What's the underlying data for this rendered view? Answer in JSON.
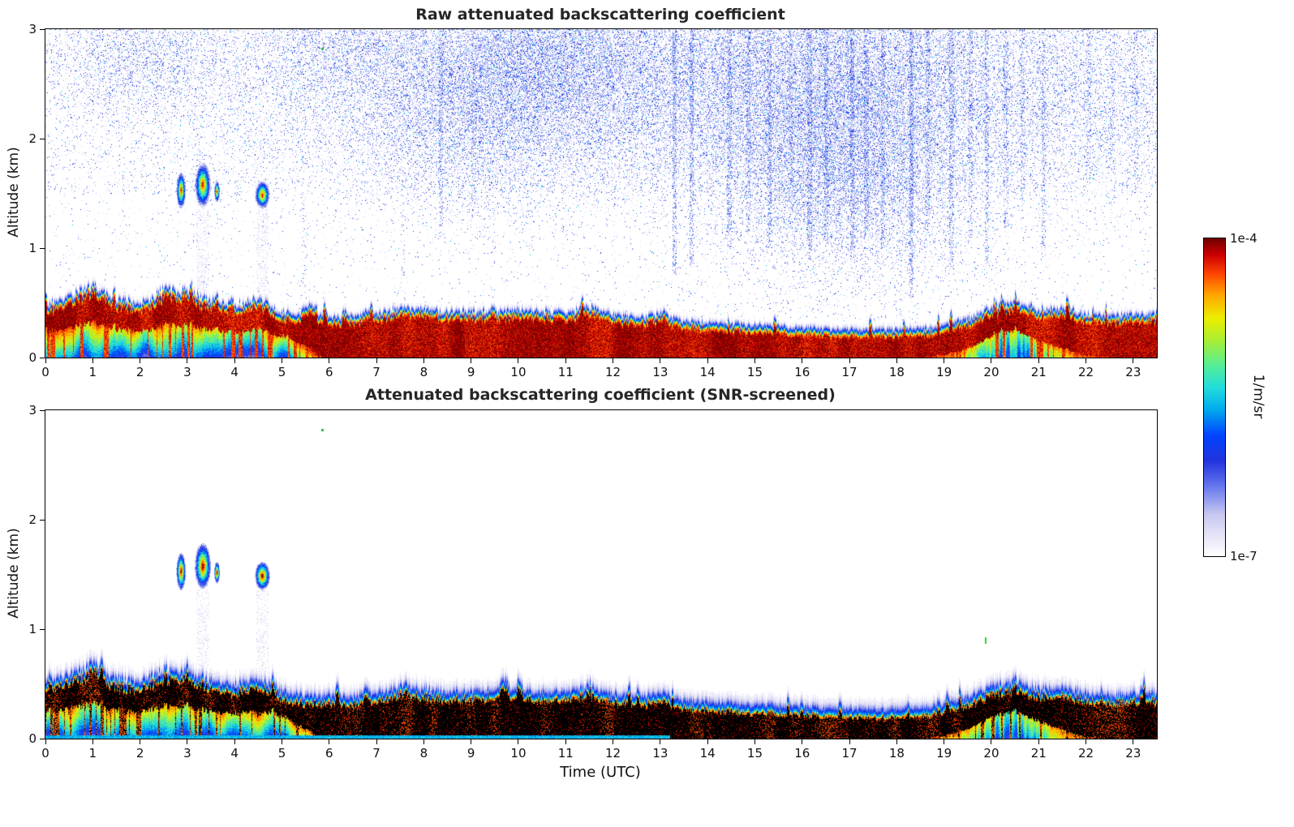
{
  "figure": {
    "background": "#ffffff",
    "text_color": "#111111",
    "frame_color": "#000000"
  },
  "colorbar": {
    "max_label": "1e-4",
    "min_label": "1e-7",
    "unit": "1/m/sr",
    "scale": "log"
  },
  "colormap": {
    "stops": [
      [
        0.0,
        "#ffffff"
      ],
      [
        0.06,
        "#e8e6f8"
      ],
      [
        0.13,
        "#c8c8f0"
      ],
      [
        0.22,
        "#6677ee"
      ],
      [
        0.3,
        "#2233dd"
      ],
      [
        0.38,
        "#0044ff"
      ],
      [
        0.46,
        "#00aaee"
      ],
      [
        0.53,
        "#22dddd"
      ],
      [
        0.6,
        "#55ee99"
      ],
      [
        0.68,
        "#aaee33"
      ],
      [
        0.75,
        "#eeee00"
      ],
      [
        0.82,
        "#ffaa00"
      ],
      [
        0.89,
        "#ff4400"
      ],
      [
        0.95,
        "#cc0000"
      ],
      [
        1.0,
        "#700000"
      ]
    ]
  },
  "chart_data": [
    {
      "type": "heatmap",
      "title": "Raw attenuated backscattering coefficient",
      "xlabel": "",
      "ylabel": "Altitude (km)",
      "xlim": [
        0,
        23.5
      ],
      "ylim": [
        0,
        3
      ],
      "xticks": [
        0,
        1,
        2,
        3,
        4,
        5,
        6,
        7,
        8,
        9,
        10,
        11,
        12,
        13,
        14,
        15,
        16,
        17,
        18,
        19,
        20,
        21,
        22,
        23
      ],
      "yticks": [
        0,
        1,
        2,
        3
      ],
      "value_range": [
        "1e-7",
        "1e-4"
      ],
      "units": "1/m/sr",
      "screened": false,
      "boundary_layer": {
        "t_hours": [
          0,
          0.5,
          1,
          1.5,
          2,
          2.5,
          3,
          3.5,
          4,
          4.5,
          5,
          5.5,
          6,
          6.5,
          7,
          7.5,
          8,
          8.5,
          9,
          9.5,
          10,
          10.5,
          11,
          11.5,
          12,
          12.5,
          13,
          13.5,
          14,
          14.5,
          15,
          15.5,
          16,
          16.5,
          17,
          17.5,
          18,
          18.5,
          19,
          19.5,
          20,
          20.5,
          21,
          21.5,
          22,
          22.5,
          23
        ],
        "top_km": [
          0.45,
          0.52,
          0.62,
          0.5,
          0.45,
          0.58,
          0.55,
          0.48,
          0.44,
          0.5,
          0.38,
          0.34,
          0.34,
          0.33,
          0.36,
          0.42,
          0.4,
          0.38,
          0.38,
          0.37,
          0.4,
          0.38,
          0.38,
          0.42,
          0.36,
          0.33,
          0.36,
          0.3,
          0.28,
          0.27,
          0.26,
          0.25,
          0.24,
          0.23,
          0.22,
          0.22,
          0.22,
          0.23,
          0.26,
          0.32,
          0.42,
          0.47,
          0.4,
          0.42,
          0.36,
          0.34,
          0.36
        ]
      },
      "clouds": [
        {
          "t": 2.86,
          "z": 1.53,
          "rt": 0.1,
          "rz": 0.17,
          "streak": false
        },
        {
          "t": 3.32,
          "z": 1.58,
          "rt": 0.17,
          "rz": 0.21,
          "streak": true
        },
        {
          "t": 3.62,
          "z": 1.52,
          "rt": 0.06,
          "rz": 0.1,
          "streak": false
        },
        {
          "t": 4.58,
          "z": 1.49,
          "rt": 0.16,
          "rz": 0.13,
          "streak": true
        }
      ],
      "specks": [
        {
          "t": 5.85,
          "z": 2.82,
          "w": 3,
          "h": 3,
          "color": "#22bb44"
        }
      ],
      "noise": {
        "base_high": 0.035,
        "base_low": 0.012,
        "blobs": [
          {
            "t": 12.3,
            "z": 2.55,
            "st": 4.8,
            "sz": 0.55,
            "p": 0.28
          },
          {
            "t": 17.0,
            "z": 2.15,
            "st": 1.7,
            "sz": 0.75,
            "p": 0.22
          },
          {
            "t": 9.2,
            "z": 2.3,
            "st": 1.4,
            "sz": 0.55,
            "p": 0.13
          },
          {
            "t": 1.9,
            "z": 2.75,
            "st": 1.1,
            "sz": 0.28,
            "p": 0.16
          },
          {
            "t": 6.4,
            "z": 2.85,
            "st": 0.9,
            "sz": 0.22,
            "p": 0.12
          },
          {
            "t": 22.0,
            "z": 2.5,
            "st": 1.8,
            "sz": 0.6,
            "p": 0.1
          },
          {
            "t": 16.8,
            "z": 1.6,
            "st": 1.5,
            "sz": 0.45,
            "p": 0.12
          },
          {
            "t": 10.6,
            "z": 2.75,
            "st": 1.0,
            "sz": 0.3,
            "p": 0.15
          }
        ],
        "streaks": [
          {
            "t": 5.45,
            "zmin": 0.5,
            "p": 0.06
          },
          {
            "t": 7.55,
            "zmin": 0.6,
            "p": 0.05
          },
          {
            "t": 8.35,
            "zmin": 1.1,
            "p": 0.22
          },
          {
            "t": 9.05,
            "zmin": 1.3,
            "p": 0.12
          },
          {
            "t": 13.3,
            "zmin": 0.75,
            "p": 0.34
          },
          {
            "t": 13.65,
            "zmin": 0.85,
            "p": 0.3
          },
          {
            "t": 14.45,
            "zmin": 1.0,
            "p": 0.26
          },
          {
            "t": 14.85,
            "zmin": 1.15,
            "p": 0.2
          },
          {
            "t": 15.3,
            "zmin": 1.0,
            "p": 0.22
          },
          {
            "t": 15.75,
            "zmin": 1.3,
            "p": 0.16
          },
          {
            "t": 16.15,
            "zmin": 0.9,
            "p": 0.26
          },
          {
            "t": 16.5,
            "zmin": 1.05,
            "p": 0.22
          },
          {
            "t": 17.05,
            "zmin": 0.9,
            "p": 0.3
          },
          {
            "t": 17.35,
            "zmin": 1.1,
            "p": 0.22
          },
          {
            "t": 17.7,
            "zmin": 1.0,
            "p": 0.2
          },
          {
            "t": 18.3,
            "zmin": 0.55,
            "p": 0.34
          },
          {
            "t": 18.65,
            "zmin": 1.2,
            "p": 0.2
          },
          {
            "t": 19.15,
            "zmin": 0.8,
            "p": 0.26
          },
          {
            "t": 19.55,
            "zmin": 1.1,
            "p": 0.2
          },
          {
            "t": 19.9,
            "zmin": 0.85,
            "p": 0.22
          },
          {
            "t": 20.3,
            "zmin": 1.2,
            "p": 0.18
          },
          {
            "t": 20.65,
            "zmin": 1.4,
            "p": 0.16
          },
          {
            "t": 21.1,
            "zmin": 0.9,
            "p": 0.2
          },
          {
            "t": 22.05,
            "zmin": 1.6,
            "p": 0.12
          },
          {
            "t": 22.55,
            "zmin": 1.8,
            "p": 0.1
          },
          {
            "t": 23.05,
            "zmin": 1.5,
            "p": 0.12
          }
        ]
      }
    },
    {
      "type": "heatmap",
      "title": "Attenuated backscattering coefficient (SNR-screened)",
      "xlabel": "Time (UTC)",
      "ylabel": "Altitude (km)",
      "xlim": [
        0,
        23.5
      ],
      "ylim": [
        0,
        3
      ],
      "xticks": [
        0,
        1,
        2,
        3,
        4,
        5,
        6,
        7,
        8,
        9,
        10,
        11,
        12,
        13,
        14,
        15,
        16,
        17,
        18,
        19,
        20,
        21,
        22,
        23
      ],
      "yticks": [
        0,
        1,
        2,
        3
      ],
      "value_range": [
        "1e-7",
        "1e-4"
      ],
      "units": "1/m/sr",
      "screened": true,
      "boundary_layer": {
        "t_hours": [
          0,
          0.5,
          1,
          1.5,
          2,
          2.5,
          3,
          3.5,
          4,
          4.5,
          5,
          5.5,
          6,
          6.5,
          7,
          7.5,
          8,
          8.5,
          9,
          9.5,
          10,
          10.5,
          11,
          11.5,
          12,
          12.5,
          13,
          13.5,
          14,
          14.5,
          15,
          15.5,
          16,
          16.5,
          17,
          17.5,
          18,
          18.5,
          19,
          19.5,
          20,
          20.5,
          21,
          21.5,
          22,
          22.5,
          23
        ],
        "top_km": [
          0.45,
          0.52,
          0.62,
          0.5,
          0.45,
          0.58,
          0.55,
          0.48,
          0.44,
          0.5,
          0.38,
          0.34,
          0.34,
          0.33,
          0.36,
          0.42,
          0.4,
          0.38,
          0.38,
          0.37,
          0.4,
          0.38,
          0.38,
          0.42,
          0.36,
          0.33,
          0.36,
          0.3,
          0.28,
          0.27,
          0.26,
          0.25,
          0.24,
          0.23,
          0.22,
          0.22,
          0.22,
          0.23,
          0.26,
          0.32,
          0.42,
          0.47,
          0.4,
          0.42,
          0.36,
          0.34,
          0.36
        ]
      },
      "clouds": [
        {
          "t": 2.86,
          "z": 1.53,
          "rt": 0.1,
          "rz": 0.17,
          "streak": false
        },
        {
          "t": 3.32,
          "z": 1.58,
          "rt": 0.17,
          "rz": 0.21,
          "streak": true
        },
        {
          "t": 3.62,
          "z": 1.52,
          "rt": 0.06,
          "rz": 0.1,
          "streak": false
        },
        {
          "t": 4.58,
          "z": 1.49,
          "rt": 0.16,
          "rz": 0.13,
          "streak": true
        }
      ],
      "specks": [
        {
          "t": 5.85,
          "z": 2.82,
          "w": 3,
          "h": 3,
          "color": "#22bb44"
        },
        {
          "t": 19.88,
          "z": 0.9,
          "w": 2,
          "h": 8,
          "color": "#33cc33"
        }
      ]
    }
  ]
}
